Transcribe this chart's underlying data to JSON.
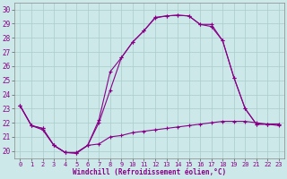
{
  "xlabel": "Windchill (Refroidissement éolien,°C)",
  "background_color": "#cce8e8",
  "line_color": "#880088",
  "grid_color": "#aacccc",
  "xlim": [
    -0.5,
    23.5
  ],
  "ylim": [
    19.5,
    30.5
  ],
  "xticks": [
    0,
    1,
    2,
    3,
    4,
    5,
    6,
    7,
    8,
    9,
    10,
    11,
    12,
    13,
    14,
    15,
    16,
    17,
    18,
    19,
    20,
    21,
    22,
    23
  ],
  "yticks": [
    20,
    21,
    22,
    23,
    24,
    25,
    26,
    27,
    28,
    29,
    30
  ],
  "series1_x": [
    0,
    1,
    2,
    3,
    4,
    5,
    6,
    7,
    8,
    9,
    10,
    11,
    12,
    13,
    14,
    15,
    16,
    17,
    18,
    19,
    20,
    21,
    22,
    23
  ],
  "series1_y": [
    23.2,
    21.8,
    21.6,
    20.4,
    19.9,
    19.85,
    20.4,
    22.0,
    24.3,
    26.6,
    27.7,
    28.5,
    29.4,
    29.55,
    29.6,
    29.55,
    28.95,
    28.8,
    27.8,
    25.2,
    23.0,
    21.9,
    21.9,
    21.9
  ],
  "series2_x": [
    0,
    1,
    2,
    3,
    4,
    5,
    6,
    7,
    8,
    9,
    10,
    11,
    12,
    13,
    14,
    15,
    16,
    17,
    18,
    19,
    20,
    21,
    22,
    23
  ],
  "series2_y": [
    23.2,
    21.8,
    21.6,
    20.4,
    19.9,
    19.85,
    20.4,
    22.2,
    25.6,
    26.6,
    27.7,
    28.5,
    29.45,
    29.55,
    29.6,
    29.55,
    28.95,
    28.95,
    27.8,
    25.2,
    23.0,
    21.9,
    21.9,
    21.9
  ],
  "series3_x": [
    0,
    1,
    2,
    3,
    4,
    5,
    6,
    7,
    8,
    9,
    10,
    11,
    12,
    13,
    14,
    15,
    16,
    17,
    18,
    19,
    20,
    21,
    22,
    23
  ],
  "series3_y": [
    23.2,
    21.8,
    21.5,
    20.4,
    19.9,
    19.9,
    20.4,
    20.5,
    21.0,
    21.1,
    21.3,
    21.4,
    21.5,
    21.6,
    21.7,
    21.8,
    21.9,
    22.0,
    22.1,
    22.1,
    22.1,
    22.0,
    21.9,
    21.8
  ]
}
